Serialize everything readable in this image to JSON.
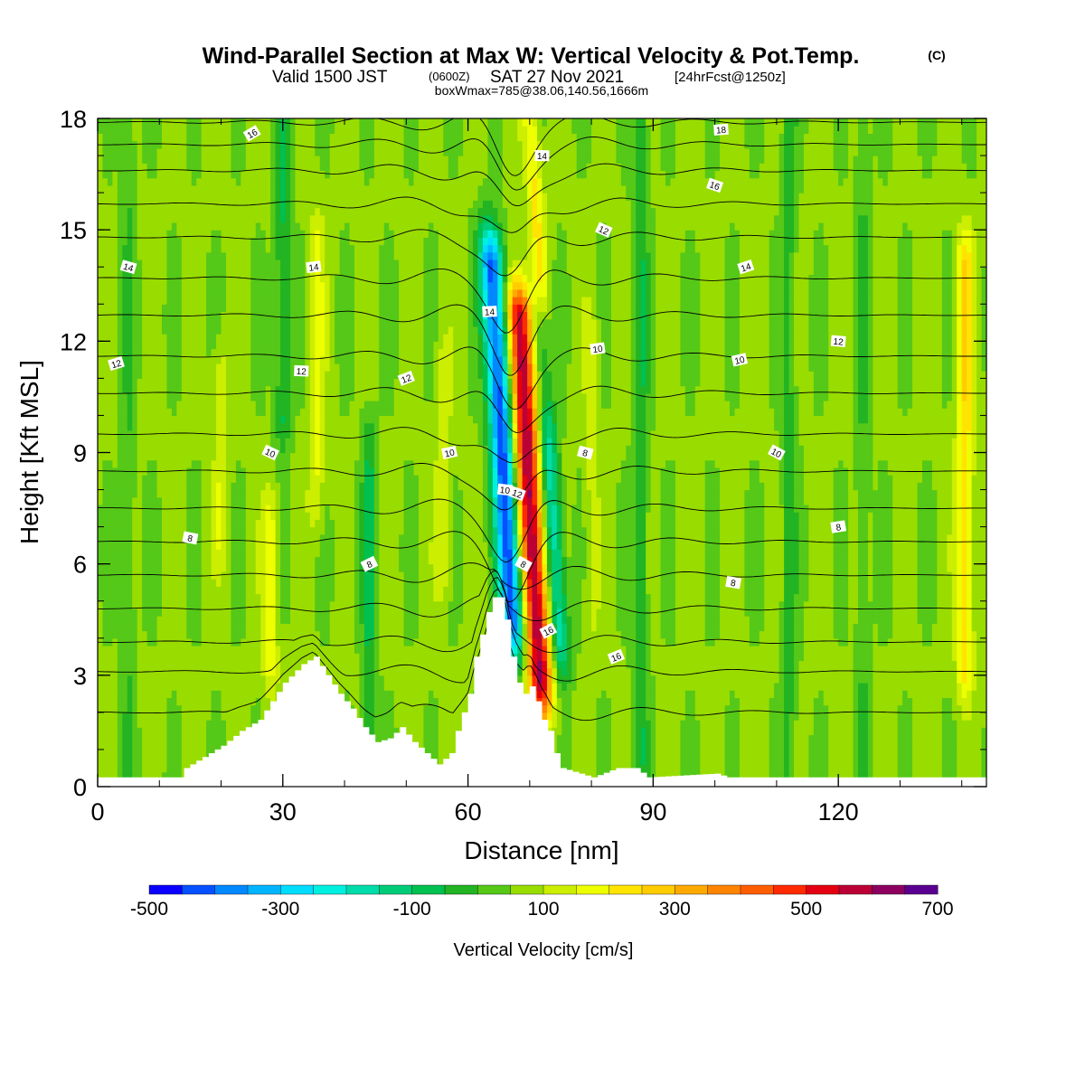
{
  "titles": {
    "main": "Wind-Parallel Section at Max W: Vertical Velocity & Pot.Temp.",
    "copyright": "(C)",
    "valid_a": "Valid 1500 JST",
    "valid_b": "(0600Z)",
    "valid_c": "SAT 27 Nov 2021",
    "valid_d": "[24hrFcst@1250z]",
    "box": "boxWmax=785@38.06,140.56,1666m"
  },
  "chart_data": {
    "type": "heatmap",
    "xlabel": "Distance [nm]",
    "ylabel": "Height [Kft MSL]",
    "xlim": [
      0,
      144
    ],
    "ylim": [
      0,
      18
    ],
    "xticks": [
      "0",
      "30",
      "60",
      "90",
      "120"
    ],
    "yticks": [
      "0",
      "3",
      "6",
      "9",
      "12",
      "15",
      "18"
    ],
    "colorbar": {
      "label": "Vertical Velocity [cm/s]",
      "min": -500,
      "max": 700,
      "step": 50,
      "tick_labels": [
        "-500",
        "-300",
        "-100",
        "100",
        "300",
        "500",
        "700"
      ],
      "colors": [
        "#0a00ff",
        "#0550ff",
        "#0088ff",
        "#00b4ff",
        "#00ddff",
        "#00f0e0",
        "#00dcaa",
        "#00cc78",
        "#00c050",
        "#22b422",
        "#55c818",
        "#99dc00",
        "#ccee00",
        "#eeff00",
        "#ffe400",
        "#ffcc00",
        "#ffaa00",
        "#ff8400",
        "#ff5e00",
        "#ff2a00",
        "#e40010",
        "#bb0035",
        "#8c0060",
        "#5a0090"
      ]
    },
    "terrain_kft": [
      [
        0,
        0.25
      ],
      [
        10,
        0.25
      ],
      [
        13,
        0.25
      ],
      [
        14,
        0.5
      ],
      [
        17,
        0.8
      ],
      [
        20,
        1.1
      ],
      [
        23,
        1.5
      ],
      [
        26,
        1.8
      ],
      [
        28,
        2.3
      ],
      [
        30,
        2.8
      ],
      [
        33,
        3.3
      ],
      [
        35,
        3.5
      ],
      [
        37,
        3.0
      ],
      [
        39,
        2.5
      ],
      [
        41,
        2.1
      ],
      [
        43,
        1.6
      ],
      [
        45,
        1.2
      ],
      [
        47,
        1.3
      ],
      [
        49,
        1.6
      ],
      [
        51,
        1.2
      ],
      [
        53,
        0.9
      ],
      [
        55,
        0.6
      ],
      [
        57,
        0.9
      ],
      [
        58,
        1.5
      ],
      [
        60,
        2.5
      ],
      [
        61,
        3.5
      ],
      [
        63,
        4.7
      ],
      [
        64,
        5.1
      ],
      [
        65,
        5.1
      ],
      [
        66,
        4.5
      ],
      [
        67,
        3.5
      ],
      [
        68,
        2.8
      ],
      [
        69,
        2.5
      ],
      [
        70,
        2.7
      ],
      [
        71,
        2.3
      ],
      [
        72,
        1.8
      ],
      [
        73,
        1.5
      ],
      [
        74,
        0.9
      ],
      [
        75,
        0.5
      ],
      [
        80,
        0.25
      ],
      [
        84,
        0.5
      ],
      [
        87,
        0.5
      ],
      [
        89,
        0.25
      ],
      [
        100,
        0.35
      ],
      [
        102,
        0.25
      ],
      [
        144,
        0.25
      ]
    ],
    "w_features": [
      {
        "x": 65.5,
        "y0": 4.5,
        "y1": 14.0,
        "w": -500
      },
      {
        "x": 70.0,
        "y0": 3.0,
        "y1": 12.5,
        "w": 550
      },
      {
        "x": 73.5,
        "y0": 4.0,
        "y1": 12.0,
        "w": -250
      },
      {
        "x": 71.5,
        "y0": 11.0,
        "y1": 17.5,
        "w": 150
      },
      {
        "x": 28.0,
        "y0": 3.5,
        "y1": 7.0,
        "w": 120
      },
      {
        "x": 35.5,
        "y0": 8.0,
        "y1": 14.5,
        "w": 100
      },
      {
        "x": 20.0,
        "y0": 7.0,
        "y1": 11.0,
        "w": 80
      },
      {
        "x": 140.5,
        "y0": 3.5,
        "y1": 14.0,
        "w": 180
      },
      {
        "x": 56.0,
        "y0": 6.0,
        "y1": 11.0,
        "w": 80
      },
      {
        "x": 80.0,
        "y0": 5.0,
        "y1": 12.0,
        "w": 60
      },
      {
        "x": 30.0,
        "y0": 10.0,
        "y1": 18.0,
        "w": -120
      },
      {
        "x": 44.0,
        "y0": 1.0,
        "y1": 9.0,
        "w": -110
      },
      {
        "x": 88.0,
        "y0": 1.0,
        "y1": 18.0,
        "w": -100
      },
      {
        "x": 112.0,
        "y0": 0.5,
        "y1": 18.0,
        "w": -80
      },
      {
        "x": 124.0,
        "y0": 0.5,
        "y1": 18.0,
        "w": -60
      },
      {
        "x": 5.0,
        "y0": 0.5,
        "y1": 18.0,
        "w": -60
      }
    ],
    "isentrope_base_kft": [
      2.0,
      3.1,
      3.9,
      4.8,
      5.7,
      6.6,
      7.5,
      8.5,
      9.5,
      10.6,
      11.6,
      12.7,
      13.7,
      14.8,
      15.7,
      16.6,
      17.3,
      17.9
    ],
    "contour_labels": [
      "16",
      "14",
      "14",
      "12",
      "12",
      "10",
      "10",
      "8",
      "8",
      "14",
      "12",
      "12",
      "10",
      "8",
      "10",
      "8",
      "16",
      "14",
      "12",
      "10",
      "8",
      "16",
      "18",
      "16",
      "14",
      "12",
      "10",
      "8"
    ]
  }
}
